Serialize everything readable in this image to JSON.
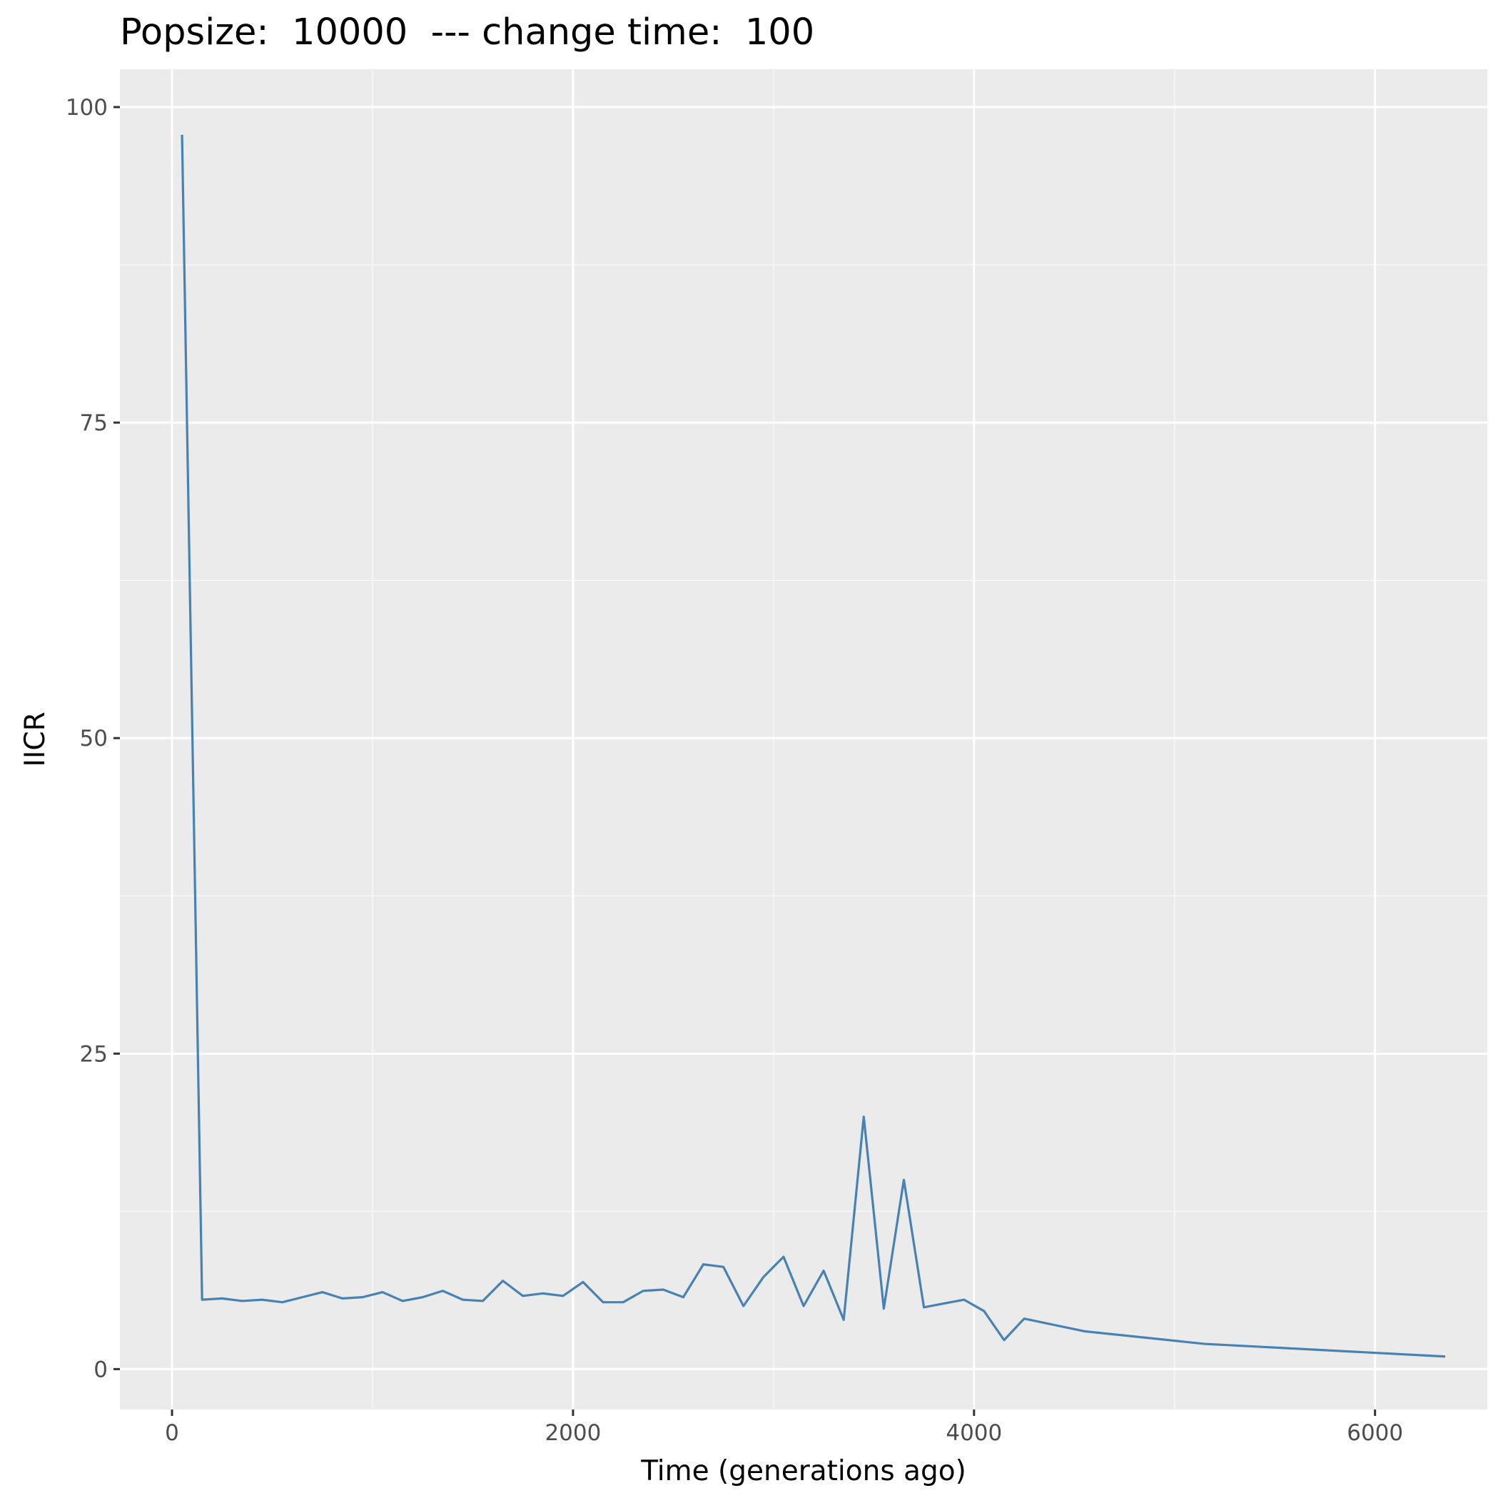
{
  "chart_data": {
    "type": "line",
    "title": "Popsize:  10000  --- change time:  100",
    "xlabel": "Time (generations ago)",
    "ylabel": "IICR",
    "xlim": [
      -260,
      6560
    ],
    "ylim": [
      -3.2,
      103
    ],
    "x_ticks": [
      0,
      2000,
      4000,
      6000
    ],
    "x_tick_labels": [
      "0",
      "2000",
      "4000",
      "6000"
    ],
    "y_ticks": [
      0,
      25,
      50,
      75,
      100
    ],
    "y_tick_labels": [
      "0",
      "25",
      "50",
      "75",
      "100"
    ],
    "grid": true,
    "colors": {
      "panel_background": "#EBEBEB",
      "grid_major": "#FFFFFF",
      "grid_minor": "#F7F7F7",
      "line": "#4682B4",
      "tick": "#333333"
    },
    "series": [
      {
        "name": "IICR",
        "x": [
          50,
          150,
          250,
          350,
          450,
          550,
          650,
          750,
          850,
          950,
          1050,
          1150,
          1250,
          1350,
          1450,
          1550,
          1650,
          1750,
          1850,
          1950,
          2050,
          2150,
          2250,
          2350,
          2450,
          2550,
          2650,
          2750,
          2850,
          2950,
          3050,
          3150,
          3250,
          3350,
          3450,
          3550,
          3650,
          3750,
          3850,
          3950,
          4050,
          4150,
          4250,
          4550,
          5150,
          6350
        ],
        "y": [
          97.8,
          5.5,
          5.6,
          5.4,
          5.5,
          5.3,
          5.7,
          6.1,
          5.6,
          5.7,
          6.1,
          5.4,
          5.7,
          6.2,
          5.5,
          5.4,
          7.0,
          5.8,
          6.0,
          5.8,
          6.9,
          5.3,
          5.3,
          6.2,
          6.3,
          5.7,
          8.3,
          8.1,
          5.0,
          7.3,
          8.9,
          5.0,
          7.8,
          3.9,
          20.0,
          4.8,
          15.0,
          4.9,
          5.2,
          5.5,
          4.6,
          2.3,
          4.0,
          3.0,
          2.0,
          1.0
        ]
      }
    ]
  }
}
